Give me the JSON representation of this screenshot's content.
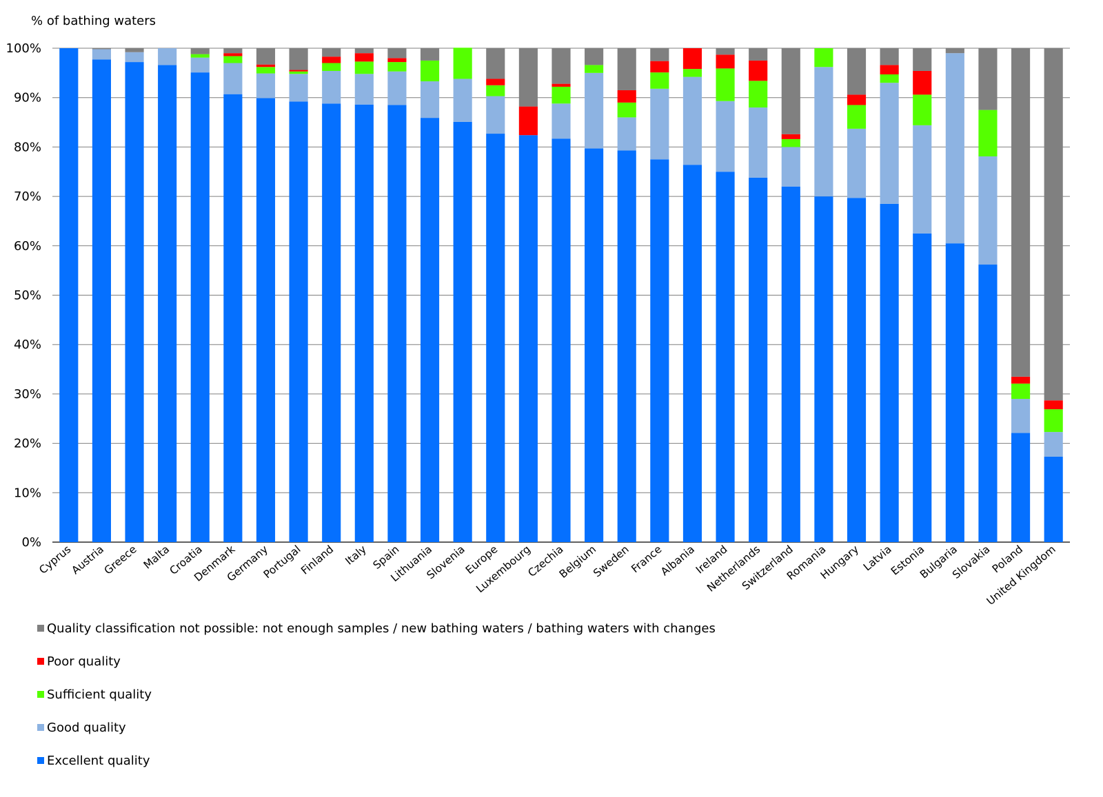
{
  "chart_data": {
    "type": "bar",
    "stacked": true,
    "ylabel": "% of bathing waters",
    "xlabel": "",
    "ylim": [
      0,
      100
    ],
    "yticks": [
      "0%",
      "10%",
      "20%",
      "30%",
      "40%",
      "50%",
      "60%",
      "70%",
      "80%",
      "90%",
      "100%"
    ],
    "grid": true,
    "legend_position": "bottom",
    "categories": [
      "Cyprus",
      "Austria",
      "Greece",
      "Malta",
      "Croatia",
      "Denmark",
      "Germany",
      "Portugal",
      "Finland",
      "Italy",
      "Spain",
      "Lithuania",
      "Slovenia",
      "Europe",
      "Luxembourg",
      "Czechia",
      "Belgium",
      "Sweden",
      "France",
      "Albania",
      "Ireland",
      "Netherlands",
      "Switzerland",
      "Romania",
      "Hungary",
      "Latvia",
      "Estonia",
      "Bulgaria",
      "Slovakia",
      "Poland",
      "United Kingdom"
    ],
    "series": [
      {
        "name": "Excellent quality",
        "color": "#0570FF",
        "values": [
          100,
          97.7,
          97.2,
          96.6,
          95.1,
          90.7,
          89.9,
          89.2,
          88.8,
          88.6,
          88.5,
          85.9,
          85.1,
          82.7,
          82.4,
          81.7,
          79.7,
          79.3,
          77.5,
          76.4,
          75.0,
          73.8,
          72.0,
          70.0,
          69.7,
          68.5,
          62.5,
          60.5,
          56.2,
          22.1,
          17.3
        ]
      },
      {
        "name": "Good quality",
        "color": "#8DB3E2",
        "values": [
          0,
          2.1,
          2.0,
          3.4,
          3.0,
          6.3,
          5.0,
          5.6,
          6.6,
          6.2,
          6.8,
          7.4,
          8.7,
          7.6,
          0,
          7.1,
          15.3,
          6.7,
          14.3,
          17.8,
          14.3,
          14.2,
          8.0,
          26.2,
          14.0,
          24.5,
          21.9,
          38.5,
          21.9,
          6.9,
          5.0
        ]
      },
      {
        "name": "Sufficient quality",
        "color": "#55FF00",
        "values": [
          0,
          0,
          0,
          0,
          0.7,
          1.4,
          1.3,
          0.5,
          1.6,
          2.5,
          1.9,
          4.2,
          6.3,
          2.2,
          0,
          3.4,
          1.6,
          3.0,
          3.3,
          1.6,
          6.6,
          5.4,
          1.6,
          3.8,
          4.8,
          1.7,
          6.2,
          0,
          9.4,
          3.1,
          4.6
        ]
      },
      {
        "name": "Poor quality",
        "color": "#FF0000",
        "values": [
          0,
          0,
          0,
          0,
          0,
          0.6,
          0.5,
          0.3,
          1.3,
          1.7,
          0.8,
          0,
          0,
          1.3,
          5.8,
          0.6,
          0,
          2.5,
          2.3,
          4.2,
          2.8,
          4.1,
          1.0,
          0,
          2.1,
          1.9,
          4.8,
          0,
          0,
          1.4,
          1.8
        ]
      },
      {
        "name": "Quality classification not possible:  not enough samples / new bathing waters / bathing waters with changes",
        "color": "#808080",
        "values": [
          0,
          0.2,
          0.8,
          0,
          1.2,
          1.0,
          3.3,
          4.4,
          1.7,
          1.0,
          2.0,
          2.5,
          0,
          6.2,
          11.8,
          7.2,
          3.4,
          8.5,
          2.6,
          0,
          1.3,
          2.5,
          17.4,
          0,
          9.4,
          3.4,
          4.6,
          1.0,
          12.5,
          66.5,
          71.3
        ]
      }
    ]
  }
}
